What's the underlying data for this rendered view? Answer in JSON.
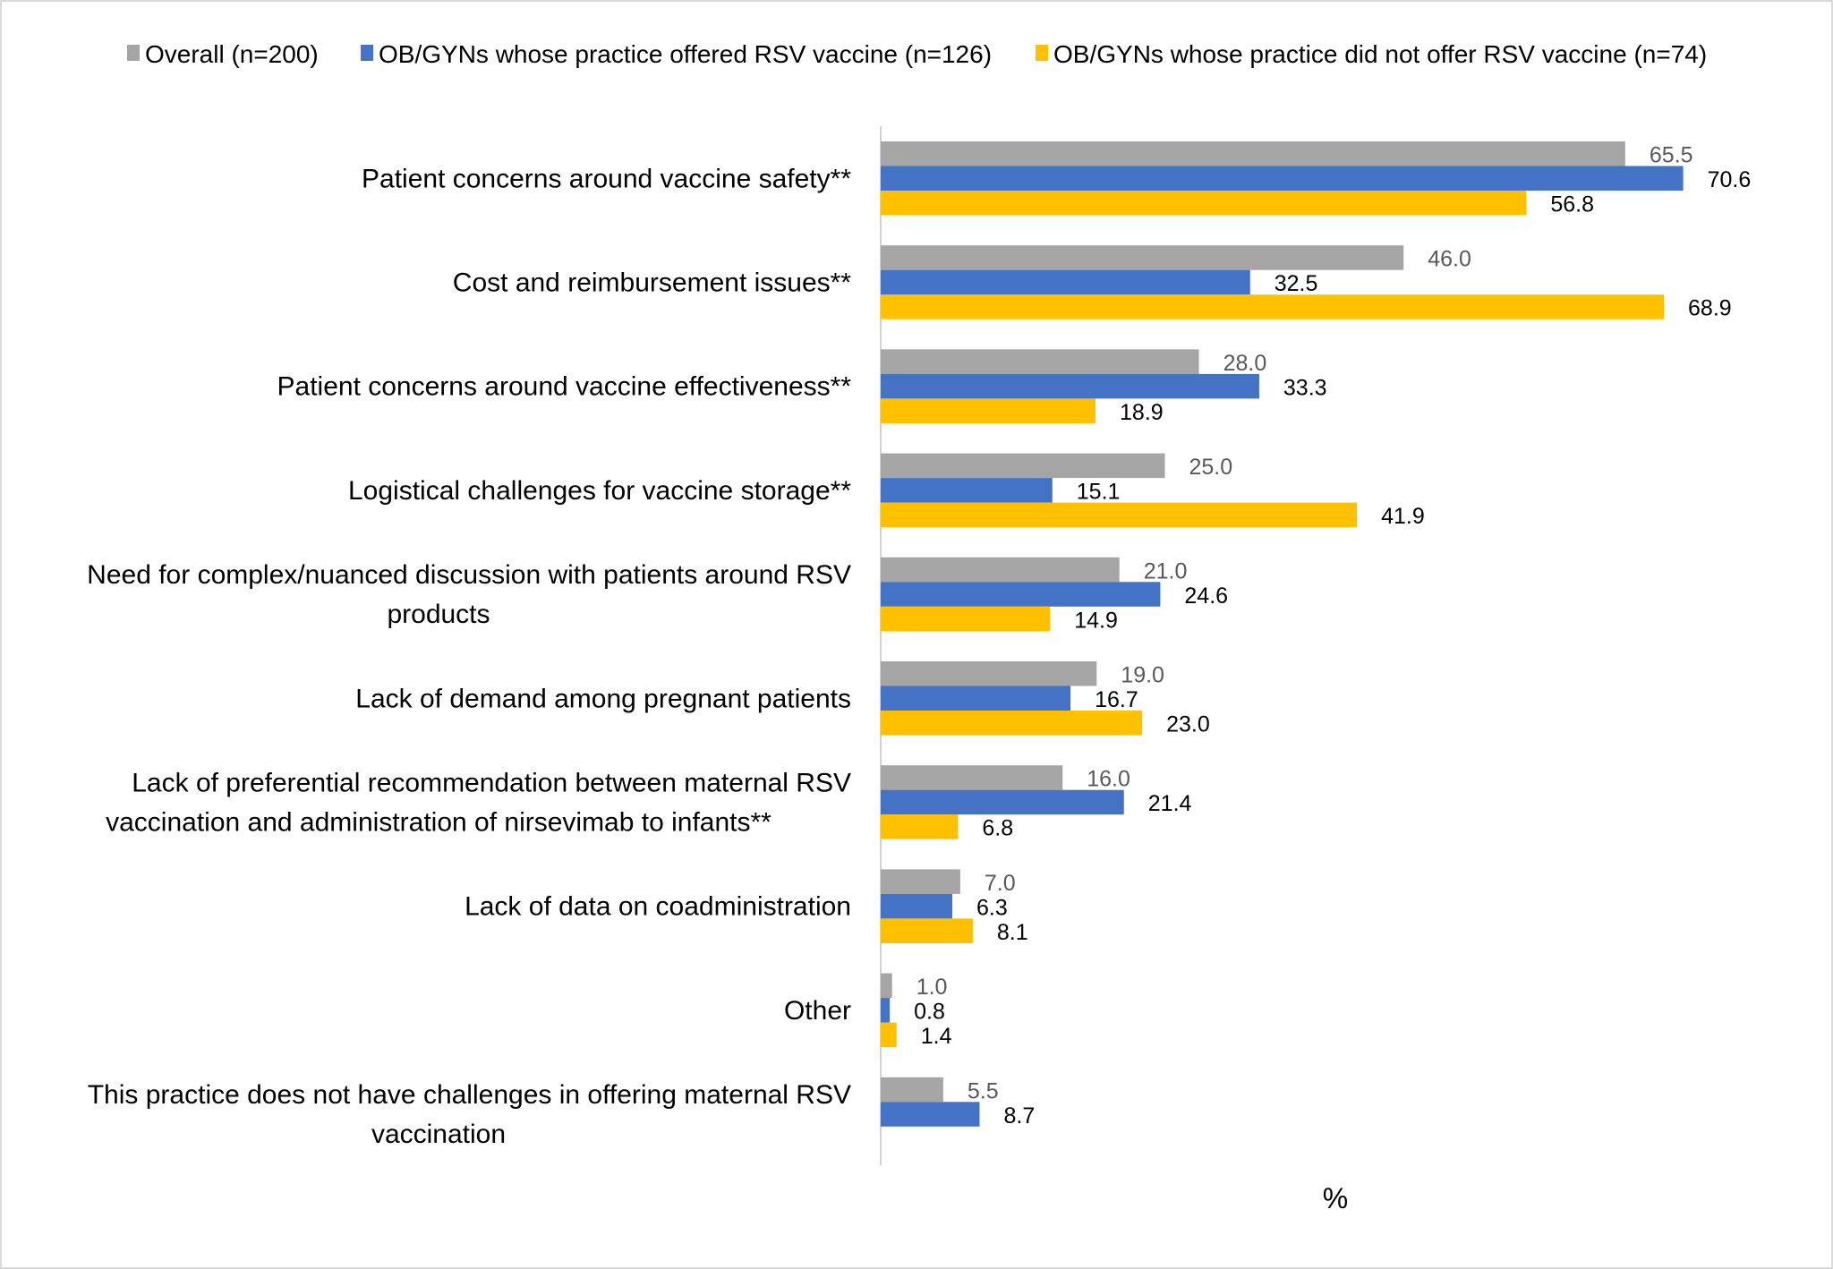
{
  "chart_data": {
    "type": "bar",
    "orientation": "horizontal",
    "title": "",
    "xlabel": "%",
    "ylabel": "",
    "xlim": [
      0,
      75
    ],
    "grid": false,
    "legend_position": "top",
    "categories": [
      [
        "Patient concerns around vaccine safety**"
      ],
      [
        "Cost and reimbursement issues**"
      ],
      [
        "Patient concerns around vaccine effectiveness**"
      ],
      [
        "Logistical challenges for vaccine storage**"
      ],
      [
        "Need for complex/nuanced discussion with patients around RSV",
        "products"
      ],
      [
        "Lack of demand among pregnant patients"
      ],
      [
        "Lack of preferential recommendation between maternal RSV",
        "vaccination and administration of nirsevimab to infants**"
      ],
      [
        "Lack of data on coadministration"
      ],
      [
        "Other"
      ],
      [
        "This practice does not have challenges in offering maternal RSV",
        "vaccination"
      ]
    ],
    "series": [
      {
        "name": "Overall (n=200)",
        "color": "#A5A5A5",
        "label_color": "#595959",
        "values": [
          65.5,
          46.0,
          28.0,
          25.0,
          21.0,
          19.0,
          16.0,
          7.0,
          1.0,
          5.5
        ]
      },
      {
        "name": "OB/GYNs whose practice offered RSV vaccine (n=126)",
        "color": "#4472C4",
        "label_color": "#000000",
        "values": [
          70.6,
          32.5,
          33.3,
          15.1,
          24.6,
          16.7,
          21.4,
          6.3,
          0.8,
          8.7
        ]
      },
      {
        "name": "OB/GYNs whose practice did not offer RSV vaccine (n=74)",
        "color": "#FFC000",
        "label_color": "#000000",
        "values": [
          56.8,
          68.9,
          18.9,
          41.9,
          14.9,
          23.0,
          6.8,
          8.1,
          1.4,
          null
        ]
      }
    ]
  }
}
